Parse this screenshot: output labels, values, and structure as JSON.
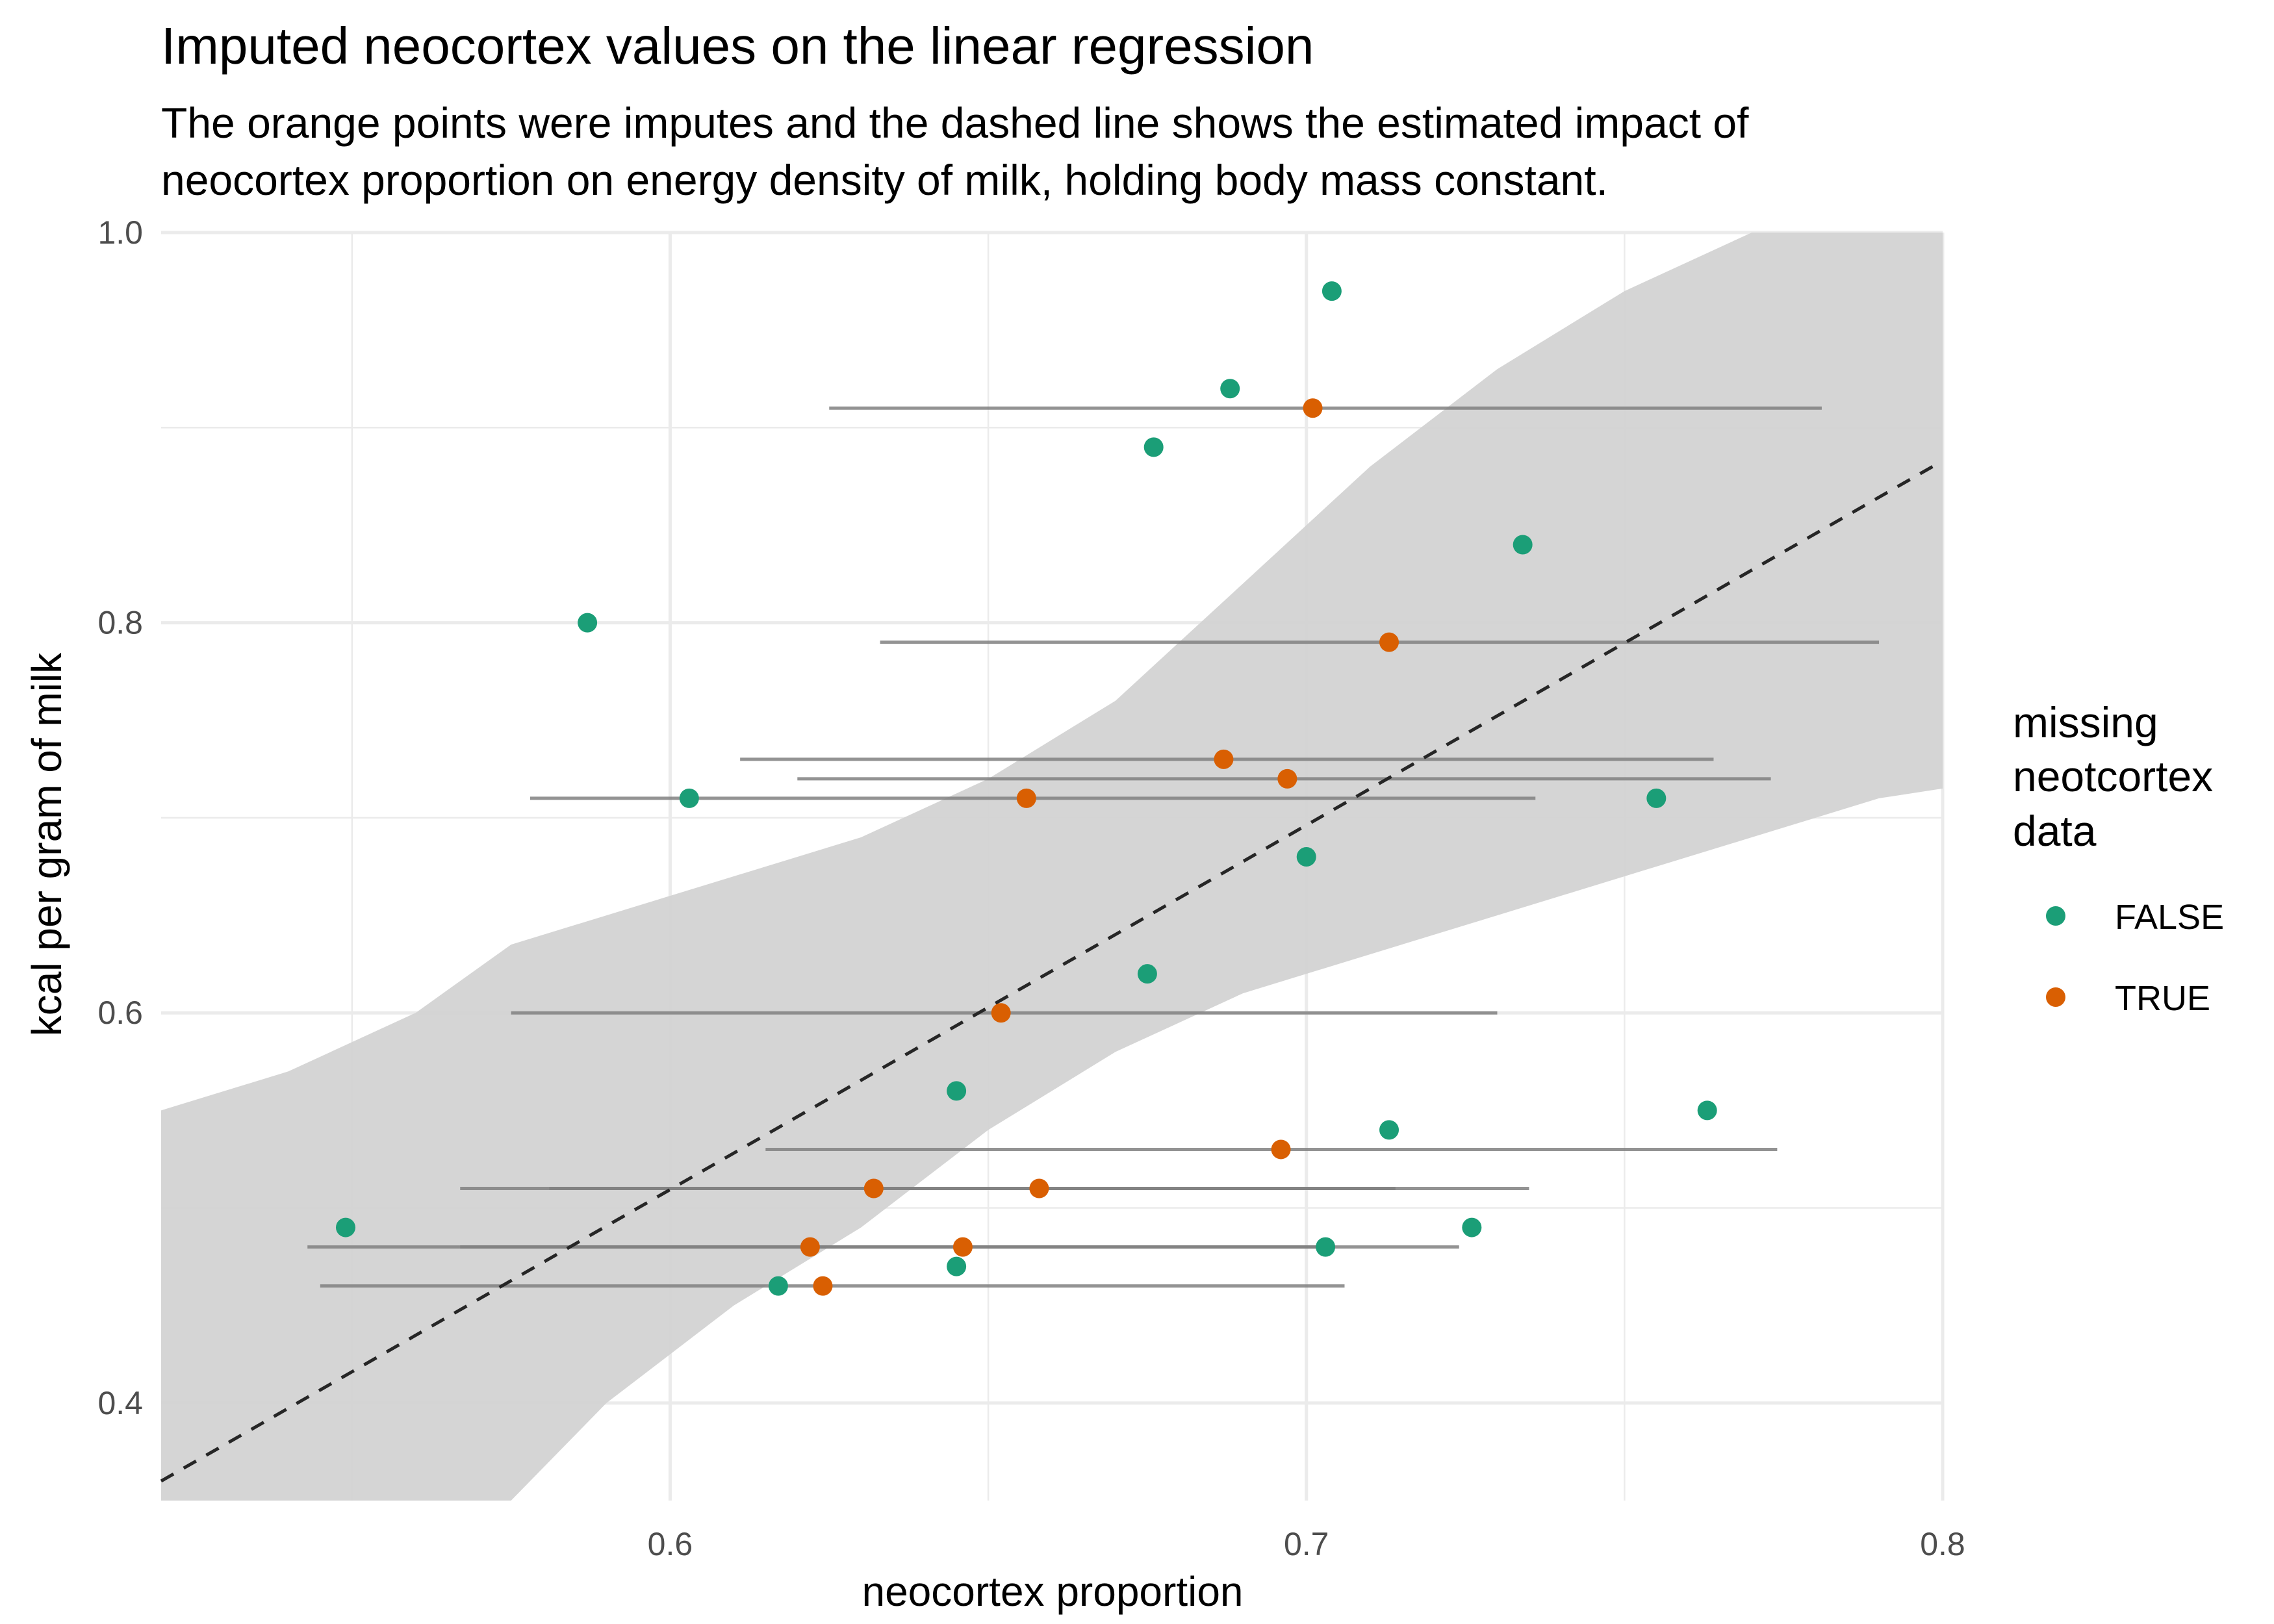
{
  "title": "Imputed neocortex values on the linear regression",
  "subtitle_lines": [
    "The orange points were imputes and the dashed line shows the estimated impact of",
    "neocortex proportion on energy density of milk, holding body mass constant."
  ],
  "colors": {
    "observed": "#1b9e77",
    "imputed": "#d95f02",
    "ribbon": "#d3d3d3",
    "interval": "#808080",
    "regression": "#262626",
    "grid": "#ebebeb"
  },
  "chart_data": {
    "type": "scatter",
    "xlabel": "neocortex proportion",
    "ylabel": "kcal per gram of milk",
    "xlim": [
      0.52,
      0.8
    ],
    "ylim": [
      0.35,
      1.0
    ],
    "x_ticks": [
      0.6,
      0.7,
      0.8
    ],
    "x_tick_labels": [
      "0.6",
      "0.7",
      "0.8"
    ],
    "y_ticks": [
      0.4,
      0.6,
      0.8,
      1.0
    ],
    "y_tick_labels": [
      "0.4",
      "0.6",
      "0.8",
      "1.0"
    ],
    "grid": true,
    "legend": {
      "title_lines": [
        "missing",
        "neotcortex",
        "data"
      ],
      "placement": "right",
      "entries": [
        {
          "label": "FALSE",
          "color": "#1b9e77"
        },
        {
          "label": "TRUE",
          "color": "#d95f02"
        }
      ]
    },
    "series": [
      {
        "name": "FALSE",
        "points": [
          {
            "x": 0.704,
            "y": 0.97
          },
          {
            "x": 0.688,
            "y": 0.92
          },
          {
            "x": 0.676,
            "y": 0.89
          },
          {
            "x": 0.734,
            "y": 0.84
          },
          {
            "x": 0.587,
            "y": 0.8
          },
          {
            "x": 0.603,
            "y": 0.71
          },
          {
            "x": 0.755,
            "y": 0.71
          },
          {
            "x": 0.7,
            "y": 0.68
          },
          {
            "x": 0.675,
            "y": 0.62
          },
          {
            "x": 0.645,
            "y": 0.56
          },
          {
            "x": 0.763,
            "y": 0.55
          },
          {
            "x": 0.713,
            "y": 0.54
          },
          {
            "x": 0.549,
            "y": 0.49
          },
          {
            "x": 0.726,
            "y": 0.49
          },
          {
            "x": 0.703,
            "y": 0.48
          },
          {
            "x": 0.645,
            "y": 0.47
          },
          {
            "x": 0.617,
            "y": 0.46
          }
        ]
      },
      {
        "name": "TRUE",
        "points": [
          {
            "x": 0.701,
            "y": 0.91,
            "lo": 0.625,
            "hi": 0.781
          },
          {
            "x": 0.713,
            "y": 0.79,
            "lo": 0.633,
            "hi": 0.79
          },
          {
            "x": 0.687,
            "y": 0.73,
            "lo": 0.611,
            "hi": 0.764
          },
          {
            "x": 0.697,
            "y": 0.72,
            "lo": 0.62,
            "hi": 0.773
          },
          {
            "x": 0.656,
            "y": 0.71,
            "lo": 0.578,
            "hi": 0.736
          },
          {
            "x": 0.652,
            "y": 0.6,
            "lo": 0.575,
            "hi": 0.73
          },
          {
            "x": 0.696,
            "y": 0.53,
            "lo": 0.615,
            "hi": 0.774
          },
          {
            "x": 0.632,
            "y": 0.51,
            "lo": 0.567,
            "hi": 0.714
          },
          {
            "x": 0.658,
            "y": 0.51,
            "lo": 0.581,
            "hi": 0.735
          },
          {
            "x": 0.622,
            "y": 0.48,
            "lo": 0.543,
            "hi": 0.703
          },
          {
            "x": 0.646,
            "y": 0.48,
            "lo": 0.567,
            "hi": 0.724
          },
          {
            "x": 0.624,
            "y": 0.46,
            "lo": 0.545,
            "hi": 0.706
          }
        ]
      }
    ],
    "regression_line": {
      "x": [
        0.52,
        0.8
      ],
      "y": [
        0.36,
        0.883
      ]
    },
    "ribbon": {
      "x": [
        0.52,
        0.54,
        0.56,
        0.575,
        0.59,
        0.61,
        0.63,
        0.65,
        0.67,
        0.69,
        0.71,
        0.73,
        0.75,
        0.77,
        0.79,
        0.8
      ],
      "upper": [
        0.55,
        0.57,
        0.6,
        0.635,
        0.65,
        0.67,
        0.69,
        0.72,
        0.76,
        0.82,
        0.88,
        0.93,
        0.97,
        1.0,
        1.0,
        1.0
      ],
      "lower": [
        0.31,
        0.32,
        0.33,
        0.35,
        0.4,
        0.45,
        0.49,
        0.54,
        0.58,
        0.61,
        0.63,
        0.65,
        0.67,
        0.69,
        0.71,
        0.715
      ]
    }
  }
}
